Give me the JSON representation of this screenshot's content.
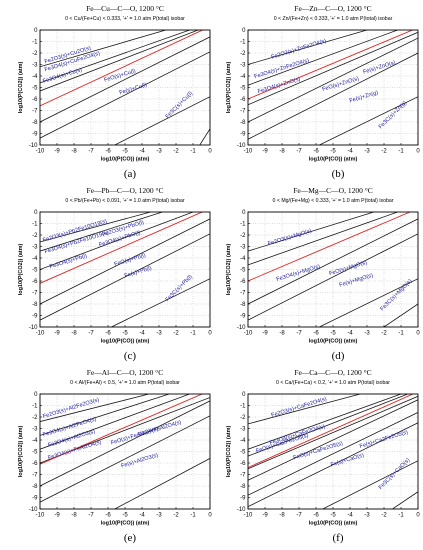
{
  "figure": {
    "axes": {
      "xlabel": "log10(P(CO)) (atm)",
      "ylabel": "log10(P(CO2)) (atm)",
      "xlim": [
        -10,
        0
      ],
      "ylim": [
        -10,
        0
      ],
      "xticks": [
        "-10",
        "-9",
        "-8",
        "-7",
        "-6",
        "-5",
        "-4",
        "-3",
        "-2",
        "-1",
        "0"
      ],
      "yticks": [
        "0",
        "-1",
        "-2",
        "-3",
        "-4",
        "-5",
        "-6",
        "-7",
        "-8",
        "-9",
        "-10"
      ]
    },
    "colors": {
      "boundary": "#1a1a1a",
      "isobar": "#e02424",
      "region_text": "#1c1c9e"
    }
  },
  "chart_data": [
    {
      "type": "line",
      "caption": "(a)",
      "title": "Fe—Cu—C—O, 1200 °C",
      "subtitle": "0 < Cu/(Fe+Cu) < 0.333, '+' = 1.0 atm P(total) isobar",
      "boundaries": [
        [
          [
            -10,
            -3.2
          ],
          [
            -2.6,
            0
          ]
        ],
        [
          [
            -10,
            -4.6
          ],
          [
            -1.2,
            0
          ]
        ],
        [
          [
            -10,
            -5.3
          ],
          [
            -0.7,
            0
          ]
        ],
        [
          [
            -10,
            -8.0
          ],
          [
            0,
            -0.6
          ]
        ],
        [
          [
            -10,
            -9.4
          ],
          [
            0,
            -1.9
          ]
        ],
        [
          [
            -5.6,
            -10
          ],
          [
            0,
            -5.8
          ]
        ],
        [
          [
            -0.6,
            -10
          ],
          [
            0,
            -8.6
          ]
        ]
      ],
      "isobar": [
        [
          -10,
          -6.6
        ],
        [
          0,
          0.3
        ]
      ],
      "regions": [
        {
          "label": "Fe2O3(s)+Cu2O(s)",
          "x": -9.7,
          "y": -2.9,
          "angle": -17
        },
        {
          "label": "Fe3O4(s)+CuFe2O4(s)",
          "x": -9.7,
          "y": -3.6,
          "angle": -17
        },
        {
          "label": "Fe3O4(s)+Cu(s)",
          "x": -9.8,
          "y": -4.6,
          "angle": -17
        },
        {
          "label": "FeO(s)+Cu(l)",
          "x": -6.2,
          "y": -4.5,
          "angle": -17
        },
        {
          "label": "Fe(s)+Cu(l)",
          "x": -5.3,
          "y": -5.6,
          "angle": -17
        },
        {
          "label": "Fe3C(s)+Cu(l)",
          "x": -2.5,
          "y": -7.7,
          "angle": -45
        }
      ]
    },
    {
      "type": "line",
      "caption": "(b)",
      "title": "Fe—Zn—C—O, 1200 °C",
      "subtitle": "0 < Zn/(Fe+Zn) < 0.333, '+' = 1.0 atm P(total) isobar",
      "boundaries": [
        [
          [
            -10,
            -3.0
          ],
          [
            -3.0,
            0
          ]
        ],
        [
          [
            -10,
            -4.8
          ],
          [
            -1.2,
            0
          ]
        ],
        [
          [
            -10,
            -6.5
          ],
          [
            0,
            -0.2
          ]
        ],
        [
          [
            -10,
            -8.0
          ],
          [
            0,
            -0.7
          ]
        ],
        [
          [
            -10,
            -9.5
          ],
          [
            0,
            -2.0
          ]
        ],
        [
          [
            -5.8,
            -10
          ],
          [
            0,
            -5.8
          ]
        ]
      ],
      "isobar": [
        [
          -10,
          -6.0
        ],
        [
          0,
          0.2
        ]
      ],
      "regions": [
        {
          "label": "Fe2O3(s)+ZnFe2O4(s)",
          "x": -8.6,
          "y": -2.5,
          "angle": -17
        },
        {
          "label": "Fe3O4(s)+ZnFe2O4(s)",
          "x": -9.6,
          "y": -4.2,
          "angle": -17
        },
        {
          "label": "Fe3O4(s)+ZnO(s)",
          "x": -9.4,
          "y": -5.5,
          "angle": -17
        },
        {
          "label": "FeO(s)+ZnO(s)",
          "x": -5.6,
          "y": -5.3,
          "angle": -17
        },
        {
          "label": "Fe(s)+ZnO(s)",
          "x": -3.2,
          "y": -3.8,
          "angle": -17
        },
        {
          "label": "Fe(s)+Zn(g)",
          "x": -4.0,
          "y": -6.3,
          "angle": -17
        },
        {
          "label": "Fe3C(s)+Zn(g)",
          "x": -2.2,
          "y": -8.6,
          "angle": -45
        }
      ]
    },
    {
      "type": "line",
      "caption": "(c)",
      "title": "Fe—Pb—C—O, 1200 °C",
      "subtitle": "0 < Pb/(Fe+Pb) < 0.091, '+' = 1.0 atm P(total) isobar",
      "boundaries": [
        [
          [
            -10,
            -2.6
          ],
          [
            -3.5,
            0
          ]
        ],
        [
          [
            -10,
            -3.4
          ],
          [
            -2.8,
            0
          ]
        ],
        [
          [
            -10,
            -5.0
          ],
          [
            -1.0,
            0
          ]
        ],
        [
          [
            -10,
            -8.0
          ],
          [
            0,
            -0.6
          ]
        ],
        [
          [
            -10,
            -9.4
          ],
          [
            0,
            -1.9
          ]
        ],
        [
          [
            -5.8,
            -10
          ],
          [
            0,
            -5.8
          ]
        ]
      ],
      "isobar": [
        [
          -10,
          -6.2
        ],
        [
          0,
          0.3
        ]
      ],
      "regions": [
        {
          "label": "Fe2O3(s)+Pb2Fe10O19(s)",
          "x": -9.8,
          "y": -2.6,
          "angle": -17
        },
        {
          "label": "Fe2O3(s)+PbO(l)",
          "x": -6.3,
          "y": -2.1,
          "angle": -17
        },
        {
          "label": "Fe3O4(s)+Pb2Fe10O19(s)",
          "x": -9.7,
          "y": -3.6,
          "angle": -17
        },
        {
          "label": "Fe3O4(s)+PbO(l)",
          "x": -6.5,
          "y": -3.0,
          "angle": -17
        },
        {
          "label": "Fe3O4(s)+Pb(l)",
          "x": -9.4,
          "y": -4.9,
          "angle": -17
        },
        {
          "label": "FeO(s)+Pb(l)",
          "x": -5.6,
          "y": -4.7,
          "angle": -17
        },
        {
          "label": "Fe(s)+Pb(l)",
          "x": -5.0,
          "y": -5.7,
          "angle": -17
        },
        {
          "label": "Fe3C(s)+Pb(l)",
          "x": -2.5,
          "y": -7.8,
          "angle": -45
        }
      ]
    },
    {
      "type": "line",
      "caption": "(d)",
      "title": "Fe—Mg—C—O, 1200 °C",
      "subtitle": "0 < Mg/(Fe+Mg) < 0.333, '+' = 1.0 atm P(total) isobar",
      "boundaries": [
        [
          [
            -10,
            -3.4
          ],
          [
            -2.6,
            0
          ]
        ],
        [
          [
            -10,
            -4.6
          ],
          [
            -1.2,
            0
          ]
        ],
        [
          [
            -10,
            -8.0
          ],
          [
            0,
            -0.6
          ]
        ],
        [
          [
            -10,
            -9.4
          ],
          [
            0,
            -1.9
          ]
        ],
        [
          [
            -5.8,
            -10
          ],
          [
            0,
            -5.8
          ]
        ],
        [
          [
            -2.0,
            -10
          ],
          [
            0,
            -8.0
          ]
        ]
      ],
      "isobar": [
        [
          -10,
          -6.0
        ],
        [
          0,
          0.3
        ]
      ],
      "regions": [
        {
          "label": "Fe2O3(s)+MgO(s)",
          "x": -8.8,
          "y": -2.9,
          "angle": -17
        },
        {
          "label": "Fe3O4(s)+MgO(s)",
          "x": -8.3,
          "y": -6.0,
          "angle": -17
        },
        {
          "label": "FeO(s)+MgO(s)",
          "x": -5.2,
          "y": -5.5,
          "angle": -17
        },
        {
          "label": "Fe(s)+MgO(s)",
          "x": -4.6,
          "y": -6.5,
          "angle": -17
        },
        {
          "label": "Fe3C(s)+MgO(s)",
          "x": -2.1,
          "y": -8.6,
          "angle": -45
        }
      ]
    },
    {
      "type": "line",
      "caption": "(e)",
      "title": "Fe—Al—C—O, 1200 °C",
      "subtitle": "0 < Al/(Fe+Al) < 0.5, '+' = 1.0 atm P(total) isobar",
      "boundaries": [
        [
          [
            -10,
            -2.4
          ],
          [
            -3.6,
            0
          ]
        ],
        [
          [
            -10,
            -3.6
          ],
          [
            -2.4,
            0
          ]
        ],
        [
          [
            -10,
            -4.8
          ],
          [
            -1.2,
            0
          ]
        ],
        [
          [
            -10,
            -6.0
          ],
          [
            0,
            -0.3
          ]
        ],
        [
          [
            -10,
            -8.0
          ],
          [
            0,
            -0.6
          ]
        ],
        [
          [
            -10,
            -9.4
          ],
          [
            0,
            -1.9
          ]
        ],
        [
          [
            -5.6,
            -10
          ],
          [
            0,
            -5.6
          ]
        ]
      ],
      "isobar": [
        [
          -10,
          -6.1
        ],
        [
          0,
          0.3
        ]
      ],
      "regions": [
        {
          "label": "Fe2O3(s)+Al2Fe2O3(s)",
          "x": -9.8,
          "y": -2.1,
          "angle": -17
        },
        {
          "label": "Fe3O4(s)+Al2FeO4(s)",
          "x": -9.8,
          "y": -3.7,
          "angle": -17
        },
        {
          "label": "Fe3O4(s)+Al2O3(s)",
          "x": -9.5,
          "y": -4.6,
          "angle": -17
        },
        {
          "label": "FeO(s)+FeAl2O4(s)",
          "x": -5.8,
          "y": -4.4,
          "angle": -17
        },
        {
          "label": "Fe3O4(s)+FeAl2O4(s)",
          "x": -9.5,
          "y": -5.7,
          "angle": -17
        },
        {
          "label": "Fe(s)+FeAl2O4(s)",
          "x": -4.2,
          "y": -3.7,
          "angle": -17
        },
        {
          "label": "Fe(s)+Al2O3(s)",
          "x": -5.2,
          "y": -6.4,
          "angle": -17
        }
      ]
    },
    {
      "type": "line",
      "caption": "(f)",
      "title": "Fe—Ca—C—O, 1200 °C",
      "subtitle": "0 < Ca/(Fe+Ca) < 0.2, '+' = 1.0 atm P(total) isobar",
      "boundaries": [
        [
          [
            -10,
            -2.6
          ],
          [
            -3.4,
            0
          ]
        ],
        [
          [
            -10,
            -4.8
          ],
          [
            -1.0,
            0
          ]
        ],
        [
          [
            -10,
            -5.4
          ],
          [
            -0.6,
            0
          ]
        ],
        [
          [
            -10,
            -6.5
          ],
          [
            0,
            -0.2
          ]
        ],
        [
          [
            -10,
            -7.5
          ],
          [
            0,
            -0.5
          ]
        ],
        [
          [
            -10,
            -8.8
          ],
          [
            0,
            -1.6
          ]
        ],
        [
          [
            -10,
            -9.8
          ],
          [
            0,
            -2.5
          ]
        ],
        [
          [
            -5.6,
            -10
          ],
          [
            0,
            -5.8
          ]
        ],
        [
          [
            -1.5,
            -10
          ],
          [
            0,
            -8.5
          ]
        ]
      ],
      "isobar": [
        [
          -10,
          -6.4
        ],
        [
          0,
          0.2
        ]
      ],
      "regions": [
        {
          "label": "Fe2O3(s)+CaFe2O4(s)",
          "x": -8.6,
          "y": -2.0,
          "angle": -17
        },
        {
          "label": "Fe3O4(s)+CaFe2O4(s)",
          "x": -8.7,
          "y": -4.4,
          "angle": -17
        },
        {
          "label": "FeO(s)+Ca2Fe2O5(s)",
          "x": -9.5,
          "y": -5.1,
          "angle": -17
        },
        {
          "label": "FeO(s)+CaFe2O5(s)",
          "x": -7.3,
          "y": -5.7,
          "angle": -17
        },
        {
          "label": "Fe(s)+Ca2Fe2O5(s)",
          "x": -3.4,
          "y": -4.7,
          "angle": -17
        },
        {
          "label": "Fe(s)+CaO(s)",
          "x": -5.1,
          "y": -6.3,
          "angle": -17
        },
        {
          "label": "Fe3C(s)+CaO(s)",
          "x": -2.2,
          "y": -8.3,
          "angle": -45
        }
      ]
    }
  ]
}
